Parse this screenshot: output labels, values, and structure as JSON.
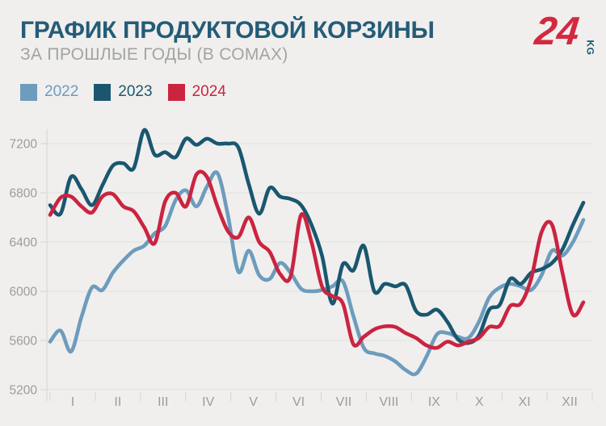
{
  "header": {
    "title": "ГРАФИК ПРОДУКТОВОЙ КОРЗИНЫ",
    "subtitle": "ЗА ПРОШЛЫЕ ГОДЫ (В СОМАХ)"
  },
  "logo": {
    "number": "24",
    "suffix": "KG",
    "number_color": "#d42840",
    "suffix_color": "#19576f"
  },
  "colors": {
    "background": "#f0efee",
    "title": "#245c76",
    "subtitle": "#a3a3a3",
    "gridline": "#e4e4e2",
    "axis": "#d8d8d6",
    "axis_text": "#9c9c9c"
  },
  "chart_data": {
    "type": "line",
    "title": "ГРАФИК ПРОДУКТОВОЙ КОРЗИНЫ",
    "subtitle": "ЗА ПРОШЛЫЕ ГОДЫ (В СОМАХ)",
    "grid": true,
    "legend_position": "top-left",
    "y_axis": {
      "min": 5200,
      "max": 7200,
      "step": 400,
      "ticks": [
        7200,
        6800,
        6400,
        6000,
        5600,
        5200
      ]
    },
    "x_axis": {
      "months": [
        "I",
        "II",
        "III",
        "IV",
        "V",
        "VI",
        "VII",
        "VIII",
        "IX",
        "X",
        "XI",
        "XII"
      ]
    },
    "series": [
      {
        "name": "2022",
        "color": "#6d9cbd",
        "values": [
          5590,
          5680,
          5510,
          5790,
          6030,
          6010,
          6150,
          6250,
          6330,
          6370,
          6470,
          6530,
          6740,
          6820,
          6690,
          6850,
          6960,
          6620,
          6160,
          6330,
          6130,
          6100,
          6230,
          6150,
          6020,
          6000,
          6010,
          6040,
          6080,
          5800,
          5540,
          5495,
          5475,
          5430,
          5360,
          5330,
          5470,
          5650,
          5660,
          5630,
          5620,
          5750,
          5950,
          6030,
          6060,
          6040,
          6010,
          6130,
          6330,
          6290,
          6400,
          6580
        ]
      },
      {
        "name": "2023",
        "color": "#1a576f",
        "values": [
          6700,
          6630,
          6930,
          6830,
          6700,
          6860,
          7020,
          7040,
          7000,
          7310,
          7110,
          7130,
          7090,
          7240,
          7190,
          7240,
          7200,
          7200,
          7170,
          6870,
          6630,
          6840,
          6770,
          6750,
          6700,
          6540,
          6290,
          5900,
          6220,
          6170,
          6370,
          6000,
          6060,
          6040,
          6050,
          5840,
          5810,
          5850,
          5750,
          5610,
          5580,
          5640,
          5850,
          5890,
          6100,
          6060,
          6150,
          6180,
          6230,
          6340,
          6540,
          6720
        ]
      },
      {
        "name": "2024",
        "color": "#cb2440",
        "values": [
          6620,
          6760,
          6770,
          6690,
          6640,
          6770,
          6790,
          6690,
          6650,
          6520,
          6390,
          6730,
          6800,
          6690,
          6950,
          6930,
          6690,
          6490,
          6440,
          6600,
          6400,
          6320,
          6140,
          6120,
          6620,
          6400,
          6040,
          5960,
          5900,
          5570,
          5630,
          5690,
          5715,
          5710,
          5660,
          5620,
          5560,
          5540,
          5590,
          5560,
          5590,
          5620,
          5710,
          5720,
          5880,
          5900,
          6100,
          6480,
          6540,
          6150,
          5810,
          5910
        ]
      }
    ]
  }
}
